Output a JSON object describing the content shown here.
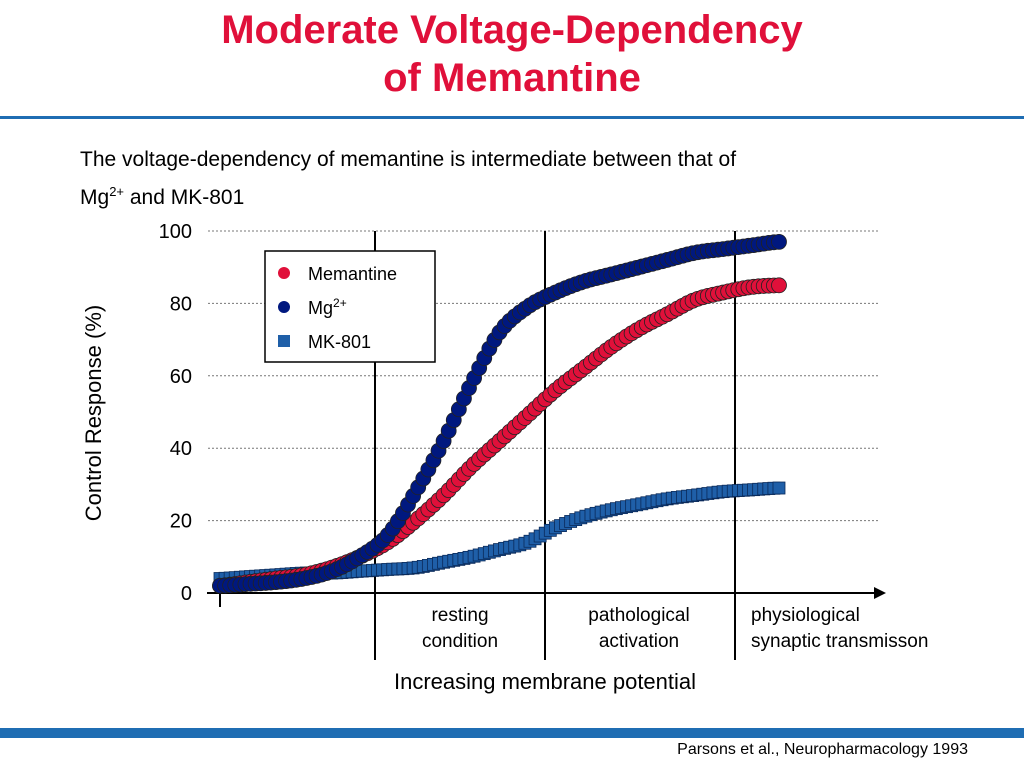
{
  "slide": {
    "title_line1": "Moderate Voltage-Dependency",
    "title_line2": "of Memantine",
    "subtitle_line1": "The voltage-dependency of memantine is intermediate between that of",
    "subtitle_mg": "Mg",
    "subtitle_mg_sup": "2+",
    "subtitle_rest": " and MK-801",
    "citation": "Parsons et al., Neuropharmacology 1993"
  },
  "regions": {
    "resting_1": "resting",
    "resting_2": "condition",
    "patho_1": "pathological",
    "patho_2": "activation",
    "physio_1": "physiological",
    "physio_2": "synaptic transmisson"
  },
  "chart_data": {
    "type": "scatter",
    "title": "",
    "xlabel": "Increasing membrane potential",
    "ylabel": "Control Response (%)",
    "ylim": [
      0,
      100
    ],
    "yticks": [
      "0",
      "20",
      "40",
      "60",
      "80",
      "100"
    ],
    "grid": true,
    "legend_position": "top-left",
    "colors": {
      "Memantine": "#e0103a",
      "Mg2+": "#00187f",
      "MK-801": "#1f5fa8"
    },
    "series": [
      {
        "name": "Memantine",
        "marker": "circle",
        "legend": "Memantine",
        "x": [
          0,
          0.05,
          0.1,
          0.15,
          0.2,
          0.25,
          0.3,
          0.35,
          0.4,
          0.45,
          0.5,
          0.55,
          0.6,
          0.65,
          0.7,
          0.75,
          0.8,
          0.85,
          0.9,
          0.95,
          1.0
        ],
        "values": [
          2,
          3,
          4,
          5,
          7,
          10,
          14,
          20,
          27,
          35,
          42,
          49,
          56,
          62,
          68,
          73,
          77,
          81,
          83,
          84.5,
          85
        ]
      },
      {
        "name": "Mg2+",
        "marker": "circle",
        "legend": "Mg",
        "legend_sup": "2+",
        "x": [
          0,
          0.05,
          0.1,
          0.15,
          0.2,
          0.25,
          0.3,
          0.35,
          0.4,
          0.45,
          0.5,
          0.55,
          0.6,
          0.65,
          0.7,
          0.75,
          0.8,
          0.85,
          0.9,
          0.95,
          1.0
        ],
        "values": [
          2,
          2.5,
          3,
          4,
          6,
          10,
          16,
          28,
          42,
          58,
          72,
          79,
          83,
          86,
          88,
          90,
          92,
          94,
          95,
          96,
          97
        ]
      },
      {
        "name": "MK-801",
        "marker": "square",
        "legend": "MK-801",
        "x": [
          0,
          0.05,
          0.1,
          0.15,
          0.2,
          0.25,
          0.3,
          0.35,
          0.4,
          0.45,
          0.5,
          0.55,
          0.6,
          0.65,
          0.7,
          0.75,
          0.8,
          0.85,
          0.9,
          0.95,
          1.0
        ],
        "values": [
          4,
          4.5,
          5,
          5.5,
          5.5,
          6,
          6.5,
          7,
          8.5,
          10,
          12,
          14,
          18,
          21,
          23,
          24.5,
          26,
          27,
          28,
          28.5,
          29
        ]
      }
    ]
  }
}
